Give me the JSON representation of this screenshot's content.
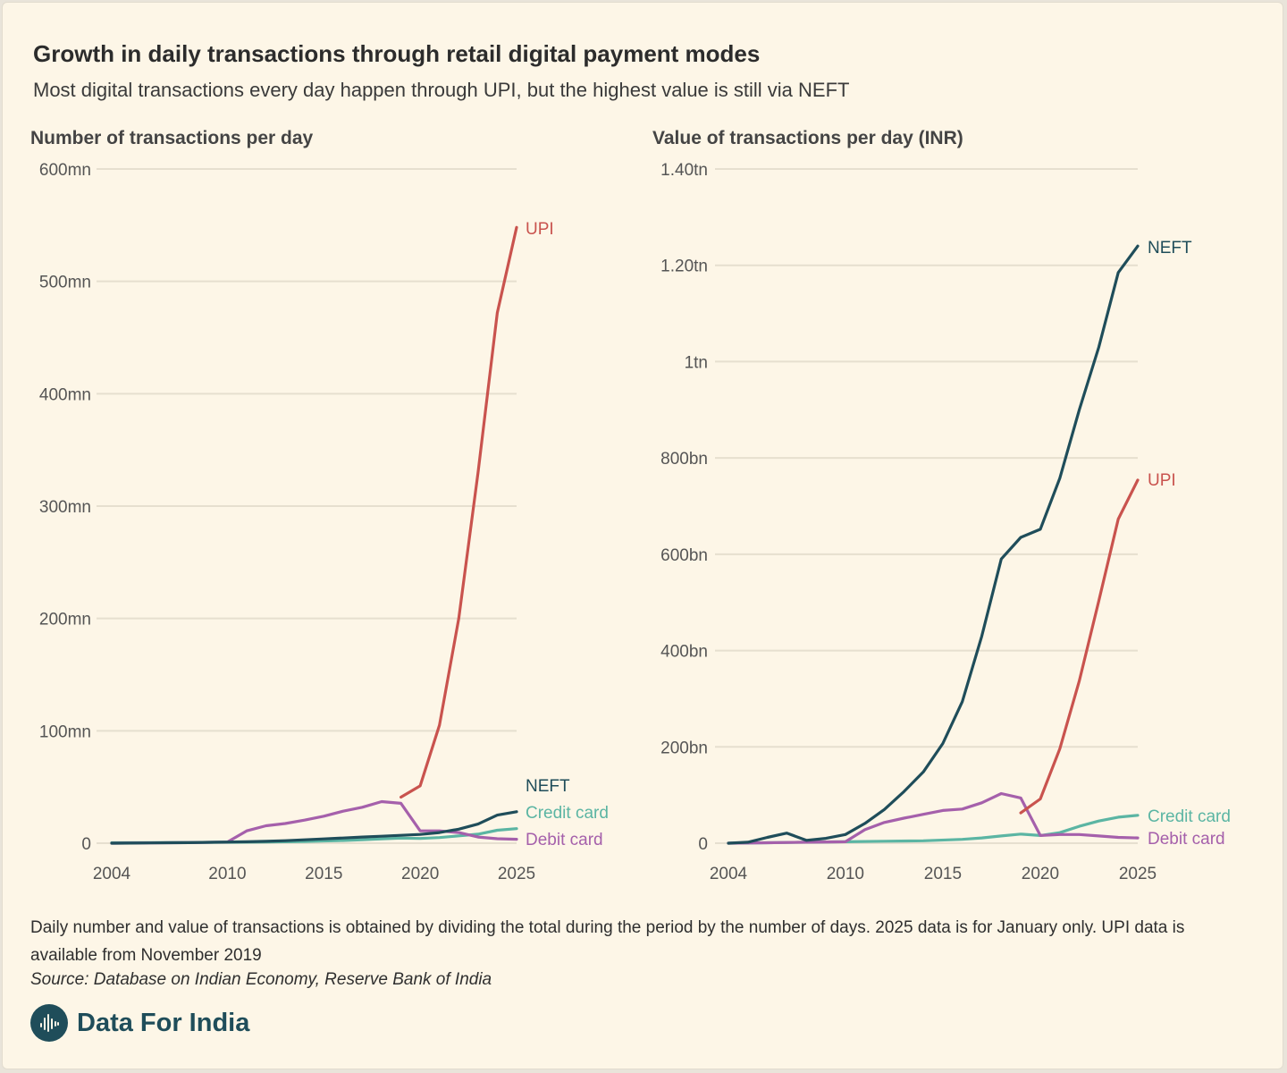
{
  "title": "Growth in daily transactions through retail digital payment modes",
  "subtitle": "Most digital transactions every day happen through UPI, but the highest value is still via NEFT",
  "note": "Daily number and value of transactions is obtained by dividing the total during the period by the number of days. 2025 data is for January only. UPI data is available from November 2019",
  "source": "Source: Database on Indian Economy, Reserve Bank of India",
  "brand": "Data For India",
  "colors": {
    "UPI": "#c9534e",
    "NEFT": "#1f4d5a",
    "Credit card": "#5bb5a3",
    "Debit card": "#a560ab",
    "grid": "#e6dfcf",
    "axis_text": "#555555"
  },
  "chart_data": [
    {
      "type": "line",
      "title": "Number of transactions per day",
      "xlim": [
        2004,
        2025
      ],
      "ylim": [
        0,
        600
      ],
      "x_ticks": [
        2004,
        2010,
        2015,
        2020,
        2025
      ],
      "x_tick_labels": [
        "2004",
        "2010",
        "2015",
        "2020",
        "2025"
      ],
      "y_ticks": [
        0,
        100,
        200,
        300,
        400,
        500,
        600
      ],
      "y_tick_labels": [
        "0",
        "100mn",
        "200mn",
        "300mn",
        "400mn",
        "500mn",
        "600mn"
      ],
      "grid": true,
      "series": [
        {
          "name": "UPI",
          "x": [
            2019,
            2020,
            2021,
            2022,
            2023,
            2024,
            2025
          ],
          "y": [
            41,
            51,
            105,
            200,
            330,
            472,
            548
          ]
        },
        {
          "name": "NEFT",
          "x": [
            2004,
            2005,
            2006,
            2007,
            2008,
            2009,
            2010,
            2011,
            2012,
            2013,
            2014,
            2015,
            2016,
            2017,
            2018,
            2019,
            2020,
            2021,
            2022,
            2023,
            2024,
            2025
          ],
          "y": [
            0,
            0.1,
            0.2,
            0.4,
            0.5,
            0.8,
            1,
            1.3,
            1.7,
            2.2,
            3,
            3.8,
            4.6,
            5.5,
            6.2,
            7,
            7.8,
            9.5,
            12.5,
            17,
            25,
            28
          ]
        },
        {
          "name": "Credit card",
          "x": [
            2004,
            2006,
            2008,
            2010,
            2012,
            2014,
            2015,
            2016,
            2017,
            2018,
            2019,
            2020,
            2021,
            2022,
            2023,
            2024,
            2025
          ],
          "y": [
            0.4,
            0.5,
            0.6,
            0.8,
            1,
            1.5,
            2,
            2.4,
            3,
            3.8,
            4.5,
            4.2,
            5,
            6.5,
            8,
            11.5,
            13
          ]
        },
        {
          "name": "Debit card",
          "x": [
            2004,
            2006,
            2008,
            2010,
            2011,
            2012,
            2013,
            2014,
            2015,
            2016,
            2017,
            2018,
            2019,
            2020,
            2021,
            2022,
            2023,
            2024,
            2025
          ],
          "y": [
            0,
            0.3,
            0.5,
            1,
            11,
            15.5,
            17.5,
            20.5,
            24,
            28.5,
            32,
            37,
            35.5,
            11,
            11,
            9.5,
            5.5,
            4,
            3.5
          ]
        }
      ]
    },
    {
      "type": "line",
      "title": "Value of transactions per day (INR)",
      "xlim": [
        2004,
        2025
      ],
      "ylim": [
        0,
        1.4
      ],
      "x_ticks": [
        2004,
        2010,
        2015,
        2020,
        2025
      ],
      "x_tick_labels": [
        "2004",
        "2010",
        "2015",
        "2020",
        "2025"
      ],
      "y_ticks": [
        0,
        0.2,
        0.4,
        0.6,
        0.8,
        1,
        1.2,
        1.4
      ],
      "y_tick_labels": [
        "0",
        "200bn",
        "400bn",
        "600bn",
        "800bn",
        "1tn",
        "1.20tn",
        "1.40tn"
      ],
      "grid": true,
      "series": [
        {
          "name": "NEFT",
          "x": [
            2004,
            2005,
            2006,
            2007,
            2008,
            2009,
            2010,
            2011,
            2012,
            2013,
            2014,
            2015,
            2016,
            2017,
            2018,
            2019,
            2020,
            2021,
            2022,
            2023,
            2024,
            2025
          ],
          "y": [
            0,
            0.002,
            0.012,
            0.021,
            0.006,
            0.01,
            0.018,
            0.041,
            0.07,
            0.107,
            0.148,
            0.207,
            0.294,
            0.43,
            0.59,
            0.635,
            0.652,
            0.758,
            0.9,
            1.03,
            1.185,
            1.24
          ]
        },
        {
          "name": "UPI",
          "x": [
            2019,
            2020,
            2021,
            2022,
            2023,
            2024,
            2025
          ],
          "y": [
            0.063,
            0.092,
            0.196,
            0.337,
            0.503,
            0.673,
            0.754
          ]
        },
        {
          "name": "Credit card",
          "x": [
            2004,
            2006,
            2008,
            2010,
            2012,
            2014,
            2016,
            2017,
            2018,
            2019,
            2020,
            2021,
            2022,
            2023,
            2024,
            2025
          ],
          "y": [
            0,
            0.001,
            0.002,
            0.003,
            0.004,
            0.005,
            0.008,
            0.011,
            0.015,
            0.019,
            0.016,
            0.022,
            0.035,
            0.046,
            0.054,
            0.058
          ]
        },
        {
          "name": "Debit card",
          "x": [
            2004,
            2006,
            2008,
            2010,
            2011,
            2012,
            2013,
            2014,
            2015,
            2016,
            2017,
            2018,
            2019,
            2020,
            2021,
            2022,
            2023,
            2024,
            2025
          ],
          "y": [
            0,
            0.001,
            0.002,
            0.003,
            0.028,
            0.043,
            0.052,
            0.06,
            0.068,
            0.071,
            0.084,
            0.103,
            0.094,
            0.016,
            0.018,
            0.018,
            0.015,
            0.012,
            0.011
          ]
        }
      ]
    }
  ]
}
